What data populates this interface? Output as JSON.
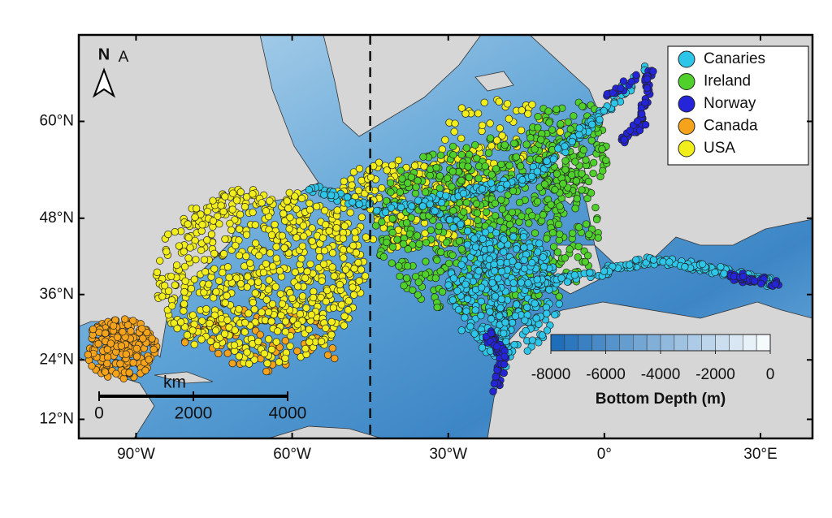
{
  "chart_data": {
    "type": "map",
    "projection": "mercator",
    "xlim": [
      -101,
      40
    ],
    "ylim": [
      8,
      68
    ],
    "xticks": [
      {
        "value": -90,
        "label": "90°W"
      },
      {
        "value": -60,
        "label": "60°W"
      },
      {
        "value": -30,
        "label": "30°W"
      },
      {
        "value": 0,
        "label": "0°"
      },
      {
        "value": 30,
        "label": "30°E"
      }
    ],
    "yticks": [
      {
        "value": 12,
        "label": "12°N"
      },
      {
        "value": 24,
        "label": "24°N"
      },
      {
        "value": 36,
        "label": "36°N"
      },
      {
        "value": 48,
        "label": "48°N"
      },
      {
        "value": 60,
        "label": "60°N"
      }
    ],
    "dashed_meridian": -45,
    "series": [
      {
        "name": "Canaries",
        "color": "#2ec6e8"
      },
      {
        "name": "Ireland",
        "color": "#4fd02a"
      },
      {
        "name": "Norway",
        "color": "#2424d8"
      },
      {
        "name": "Canada",
        "color": "#f5a31a"
      },
      {
        "name": "USA",
        "color": "#f2ee1c"
      }
    ],
    "legend": "upper right",
    "colorbar": {
      "label": "Bottom Depth (m)",
      "lim": [
        -8000,
        0
      ],
      "ticks": [
        -8000,
        -6000,
        -4000,
        -2000,
        0
      ]
    },
    "scale_bar": {
      "label": "km",
      "ticks": [
        0,
        2000,
        4000
      ]
    },
    "north_label": "N",
    "panel_label": "A"
  }
}
